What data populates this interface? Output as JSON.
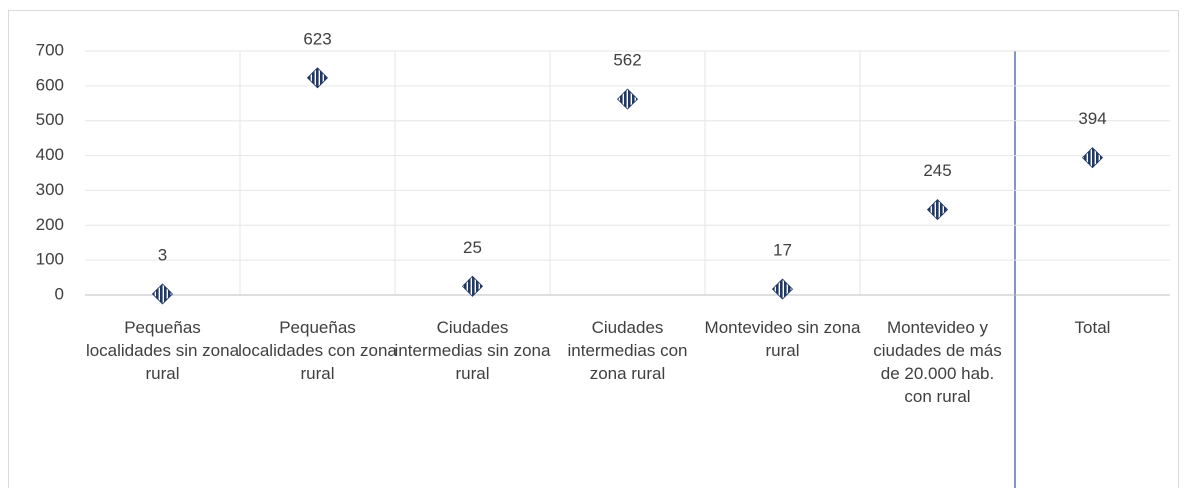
{
  "chart_data": {
    "type": "point",
    "categories": [
      "Pequeñas localidades sin zona rural",
      "Pequeñas localidades con zona rural",
      "Ciudades intermedias sin zona rural",
      "Ciudades intermedias con zona rural",
      "Montevideo sin zona rural",
      "Montevideo y ciudades de más de 20.000 hab. con rural",
      "Total"
    ],
    "values": [
      3,
      623,
      25,
      562,
      17,
      245,
      394
    ],
    "color": "#1f3864",
    "ylim": [
      0,
      700
    ],
    "yticks": [
      0,
      100,
      200,
      300,
      400,
      500,
      600,
      700
    ],
    "grid": true
  }
}
